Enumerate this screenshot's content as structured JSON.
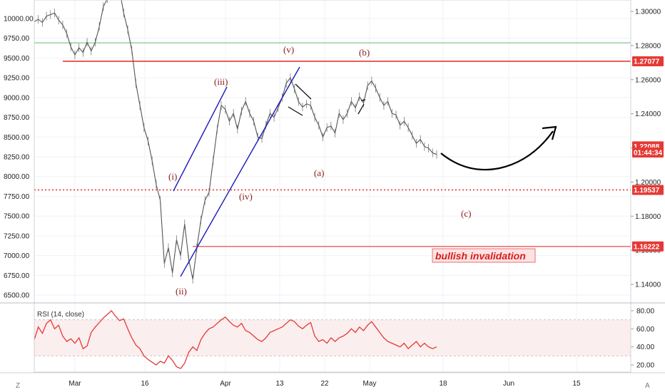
{
  "chart_data": {
    "type": "line",
    "left_axis": {
      "ticks": [
        "10000.00",
        "9750.00",
        "9500.00",
        "9250.00",
        "9000.00",
        "8750.00",
        "8500.00",
        "8250.00",
        "8000.00",
        "7750.00",
        "7500.00",
        "7250.00",
        "7000.00",
        "6750.00",
        "6500.00"
      ],
      "range": [
        6500,
        10000
      ]
    },
    "right_axis": {
      "ticks": [
        "1.30000",
        "1.28000",
        "1.26000",
        "1.24000",
        "1.22000",
        "1.20000",
        "1.18000",
        "1.16000",
        "1.14000"
      ],
      "range": [
        1.14,
        1.3
      ],
      "badges": [
        {
          "label": "1.27077",
          "value": 1.27077,
          "color": "#e53935"
        },
        {
          "label": "1.22088",
          "value": 1.22088,
          "color": "#e53935"
        },
        {
          "label": "01:44:34",
          "value": 1.2173,
          "color": "#e53935"
        },
        {
          "label": "1.19537",
          "value": 1.19537,
          "color": "#e53935"
        },
        {
          "label": "1.16222",
          "value": 1.16222,
          "color": "#e53935"
        }
      ]
    },
    "x_axis": {
      "ticks": [
        "Mar",
        "16",
        "Apr",
        "13",
        "22",
        "May",
        "18",
        "Jun",
        "15"
      ]
    },
    "price_series": [
      9960,
      9990,
      9950,
      10030,
      10050,
      10070,
      9980,
      9920,
      9810,
      9640,
      9540,
      9630,
      9570,
      9700,
      9590,
      9700,
      9900,
      10150,
      10250,
      10310,
      10450,
      10360,
      10070,
      9860,
      9600,
      9180,
      8900,
      8620,
      8450,
      8200,
      7900,
      7700,
      6900,
      7100,
      6780,
      7200,
      7000,
      7400,
      6950,
      6700,
      7100,
      7450,
      7700,
      7800,
      8200,
      8600,
      8900,
      8850,
      8700,
      8800,
      8600,
      8830,
      8950,
      8800,
      8700,
      8500,
      8480,
      8650,
      8800,
      8750,
      8870,
      9000,
      9180,
      9250,
      9110,
      8950,
      8880,
      8920,
      8900,
      8750,
      8650,
      8500,
      8620,
      8640,
      8550,
      8800,
      8720,
      8800,
      8950,
      8870,
      9010,
      8930,
      9150,
      9210,
      9120,
      9000,
      8900,
      8950,
      8800,
      8780,
      8650,
      8700,
      8620,
      8520,
      8420,
      8470,
      8380,
      8360,
      8300,
      8280
    ],
    "levels": [
      {
        "value": 1.2816,
        "color": "#4caf50",
        "width": 0.8
      },
      {
        "value": 1.27077,
        "color": "#e53935",
        "width": 1.6
      },
      {
        "value": 1.19537,
        "color": "#e53935",
        "width": 1.6,
        "dashed": true
      },
      {
        "value": 1.16222,
        "color": "#e53935",
        "width": 1.2
      }
    ],
    "wave_labels": [
      "(i)",
      "(ii)",
      "(iii)",
      "(iv)",
      "(v)",
      "(a)",
      "(b)",
      "(c)"
    ],
    "annotation": "bullish invalidation",
    "rsi": {
      "title": "RSI (14, close)",
      "ticks": [
        "80.00",
        "60.00",
        "40.00",
        "20.00"
      ],
      "range": [
        10,
        85
      ],
      "band": [
        30,
        70
      ],
      "values": [
        48,
        62,
        55,
        66,
        70,
        60,
        64,
        52,
        46,
        49,
        44,
        50,
        38,
        41,
        56,
        62,
        67,
        72,
        76,
        80,
        74,
        69,
        71,
        60,
        50,
        42,
        38,
        30,
        26,
        23,
        20,
        24,
        22,
        30,
        25,
        18,
        16,
        22,
        34,
        40,
        36,
        48,
        55,
        60,
        62,
        66,
        70,
        73,
        68,
        64,
        62,
        66,
        58,
        56,
        52,
        48,
        46,
        50,
        56,
        58,
        60,
        62,
        66,
        70,
        68,
        63,
        60,
        64,
        67,
        52,
        46,
        48,
        44,
        50,
        46,
        50,
        52,
        55,
        60,
        56,
        62,
        58,
        64,
        68,
        62,
        56,
        50,
        46,
        44,
        42,
        40,
        44,
        38,
        42,
        46,
        40,
        44,
        40,
        38,
        40
      ],
      "line_color": "#e53935"
    }
  },
  "corner_labels": {
    "left": "Z",
    "right": "A"
  }
}
